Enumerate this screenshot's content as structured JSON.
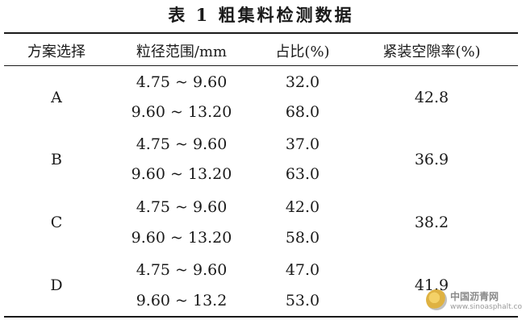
{
  "title": "表 1 粗集料检测数据",
  "headers": [
    "方案选择",
    "粒径范围/mm",
    "占比(%)",
    "紧装空隙率(%)"
  ],
  "rows": [
    {
      "scheme": "A",
      "ranges": [
        "4.75 ~ 9.60",
        "9.60 ~ 13.20"
      ],
      "ratios": [
        "32.0",
        "68.0"
      ],
      "void": "42.8"
    },
    {
      "scheme": "B",
      "ranges": [
        "4.75 ~ 9.60",
        "9.60 ~ 13.20"
      ],
      "ratios": [
        "37.0",
        "63.0"
      ],
      "void": "36.9"
    },
    {
      "scheme": "C",
      "ranges": [
        "4.75 ~ 9.60",
        "9.60 ~ 13.20"
      ],
      "ratios": [
        "42.0",
        "58.0"
      ],
      "void": "38.2"
    },
    {
      "scheme": "D",
      "ranges": [
        "4.75 ~ 9.60",
        "9.60 ~ 13.2"
      ],
      "ratios": [
        "47.0",
        "53.0"
      ],
      "void": "41.9"
    }
  ],
  "watermark": {
    "name": "中国沥青网",
    "url": "www.sinoasphalt.com"
  }
}
